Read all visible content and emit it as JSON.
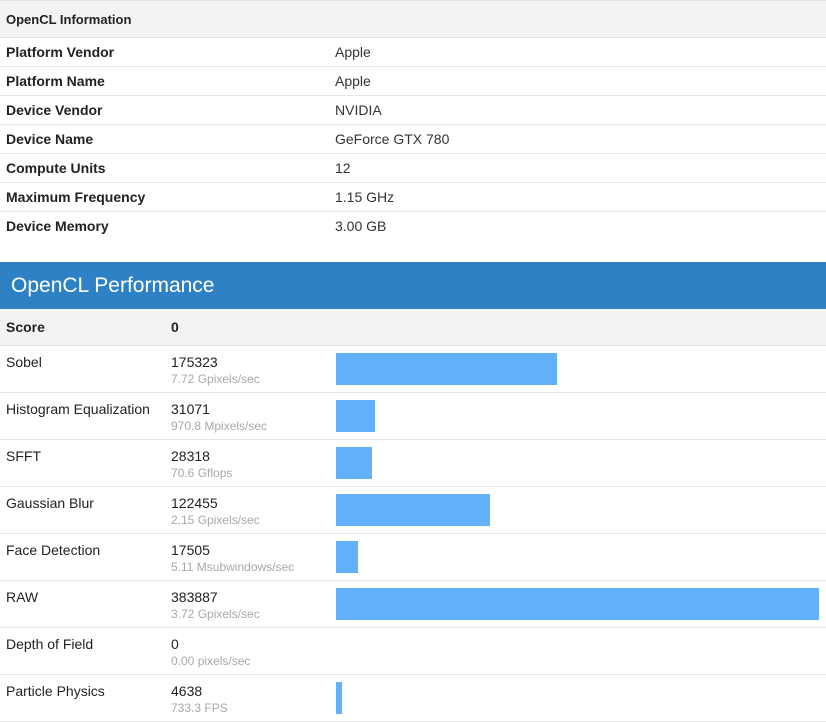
{
  "info": {
    "header": "OpenCL Information",
    "rows": [
      {
        "key": "Platform Vendor",
        "value": "Apple"
      },
      {
        "key": "Platform Name",
        "value": "Apple"
      },
      {
        "key": "Device Vendor",
        "value": "NVIDIA"
      },
      {
        "key": "Device Name",
        "value": "GeForce GTX 780"
      },
      {
        "key": "Compute Units",
        "value": "12"
      },
      {
        "key": "Maximum Frequency",
        "value": "1.15 GHz"
      },
      {
        "key": "Device Memory",
        "value": "3.00 GB"
      }
    ]
  },
  "performance": {
    "title": "OpenCL Performance",
    "score_label": "Score",
    "score_value": "0",
    "bar_color": "#64b1fb",
    "bar_max": 383887,
    "rows": [
      {
        "name": "Sobel",
        "score": "175323",
        "rate": "7.72 Gpixels/sec",
        "value": 175323
      },
      {
        "name": "Histogram Equalization",
        "score": "31071",
        "rate": "970.8 Mpixels/sec",
        "value": 31071
      },
      {
        "name": "SFFT",
        "score": "28318",
        "rate": "70.6 Gflops",
        "value": 28318
      },
      {
        "name": "Gaussian Blur",
        "score": "122455",
        "rate": "2.15 Gpixels/sec",
        "value": 122455
      },
      {
        "name": "Face Detection",
        "score": "17505",
        "rate": "5.11 Msubwindows/sec",
        "value": 17505
      },
      {
        "name": "RAW",
        "score": "383887",
        "rate": "3.72 Gpixels/sec",
        "value": 383887
      },
      {
        "name": "Depth of Field",
        "score": "0",
        "rate": "0.00 pixels/sec",
        "value": 0
      },
      {
        "name": "Particle Physics",
        "score": "4638",
        "rate": "733.3 FPS",
        "value": 4638
      }
    ]
  }
}
